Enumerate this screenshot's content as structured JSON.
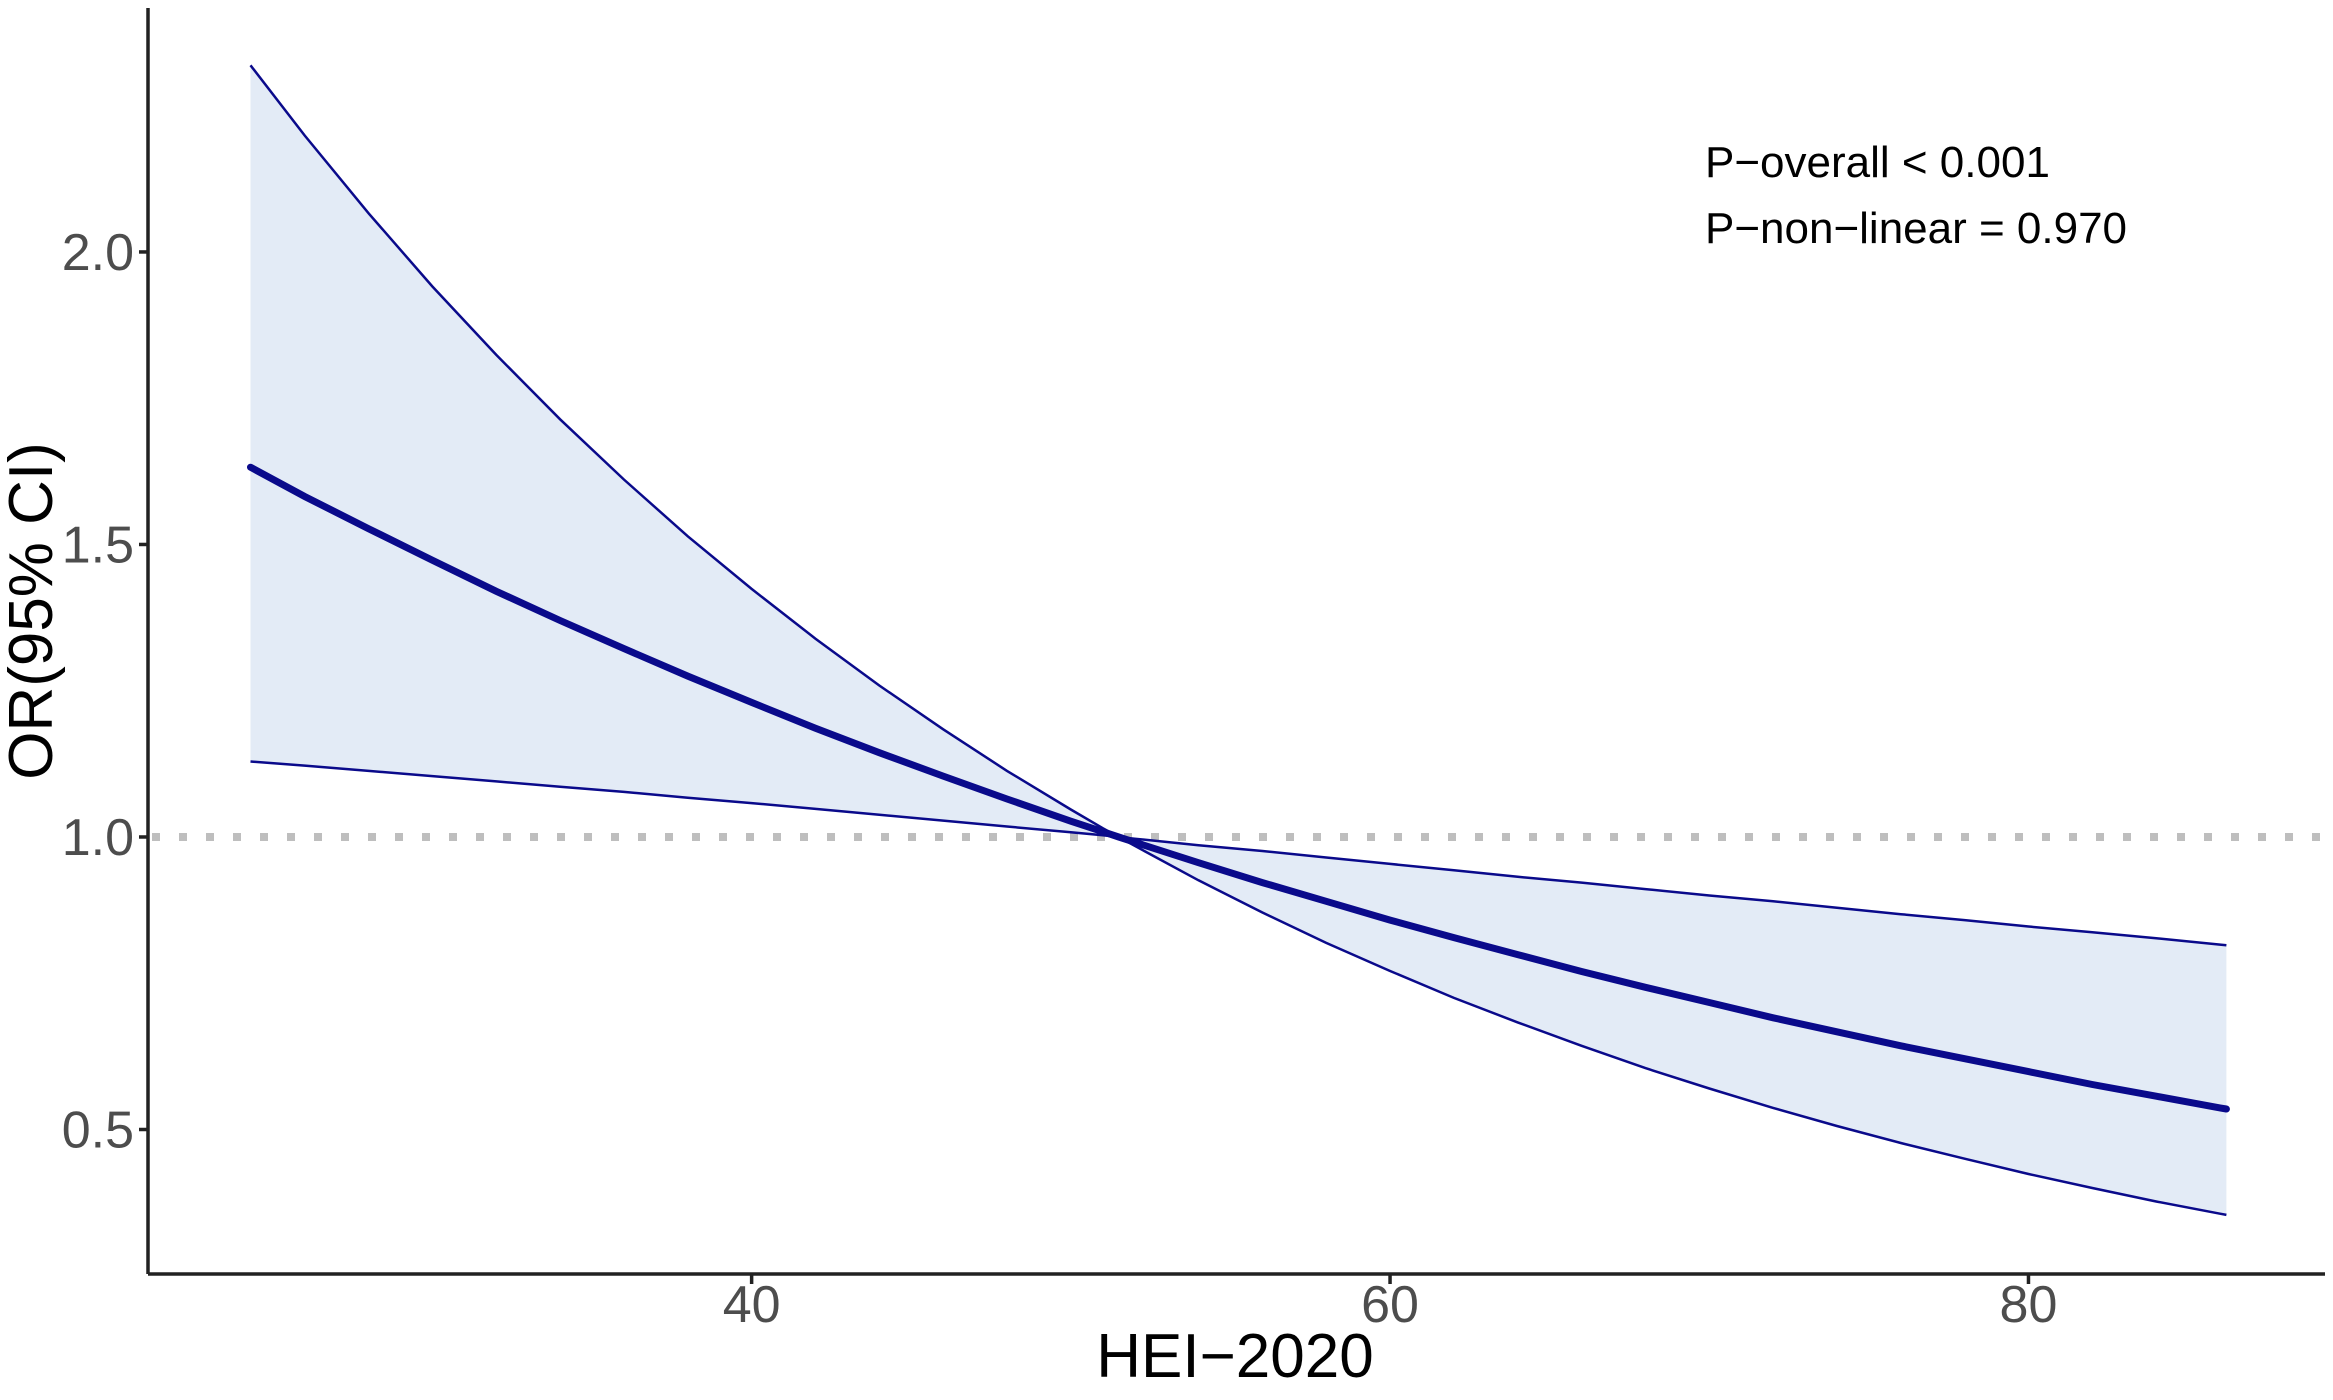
{
  "figure": {
    "colors": {
      "line_navy": "#0a0a8b",
      "ci_fill": "#e3ebf6",
      "reference_gray": "#bebebe",
      "axis_line": "#222222",
      "tick_label_gray": "#4d4d4d",
      "text_black": "#000000"
    }
  },
  "chart_data": {
    "type": "line",
    "title": "",
    "xlabel": "HEI−2020",
    "ylabel": "OR(95% CI)",
    "x_domain": [
      21.09,
      89.54
    ],
    "y_domain": [
      0.253,
      2.417
    ],
    "x_ticks": [
      {
        "value": 40,
        "label": "40"
      },
      {
        "value": 60,
        "label": "60"
      },
      {
        "value": 80,
        "label": "80"
      }
    ],
    "y_ticks": [
      {
        "value": 0.5,
        "label": "0.5"
      },
      {
        "value": 1.0,
        "label": "1.0"
      },
      {
        "value": 1.5,
        "label": "1.5"
      },
      {
        "value": 2.0,
        "label": "2.0"
      }
    ],
    "reference_line": {
      "y": 1.0
    },
    "annotations": [
      "P−overall < 0.001",
      "P−non−linear = 0.970"
    ],
    "x": [
      24.3,
      26,
      28,
      30,
      32,
      34,
      36,
      38,
      40,
      42,
      44,
      46,
      48,
      50,
      51,
      51.5,
      52,
      54,
      56,
      58,
      60,
      62,
      64,
      66,
      68,
      70,
      72,
      74,
      76,
      78,
      80,
      82,
      84,
      86,
      86.2
    ],
    "series": [
      {
        "name": "OR",
        "role": "central",
        "values": [
          1.632,
          1.582,
          1.527,
          1.473,
          1.42,
          1.37,
          1.322,
          1.275,
          1.23,
          1.186,
          1.144,
          1.104,
          1.065,
          1.027,
          1.009,
          1.0,
          0.991,
          0.956,
          0.922,
          0.89,
          0.858,
          0.828,
          0.799,
          0.77,
          0.743,
          0.717,
          0.691,
          0.667,
          0.643,
          0.621,
          0.599,
          0.577,
          0.557,
          0.537,
          0.535
        ]
      },
      {
        "name": "upper95",
        "role": "ci_upper",
        "values": [
          2.319,
          2.199,
          2.066,
          1.941,
          1.824,
          1.714,
          1.611,
          1.514,
          1.424,
          1.339,
          1.259,
          1.184,
          1.113,
          1.047,
          1.015,
          1.0,
          0.997,
          0.986,
          0.976,
          0.965,
          0.954,
          0.943,
          0.932,
          0.922,
          0.911,
          0.9,
          0.89,
          0.879,
          0.868,
          0.858,
          0.847,
          0.837,
          0.827,
          0.816,
          0.815
        ]
      },
      {
        "name": "lower95",
        "role": "ci_lower",
        "values": [
          1.129,
          1.122,
          1.113,
          1.104,
          1.095,
          1.086,
          1.077,
          1.067,
          1.058,
          1.048,
          1.038,
          1.028,
          1.018,
          1.008,
          1.003,
          1.0,
          0.985,
          0.926,
          0.871,
          0.819,
          0.771,
          0.725,
          0.683,
          0.643,
          0.605,
          0.57,
          0.537,
          0.506,
          0.477,
          0.45,
          0.424,
          0.4,
          0.377,
          0.356,
          0.354
        ]
      }
    ]
  }
}
